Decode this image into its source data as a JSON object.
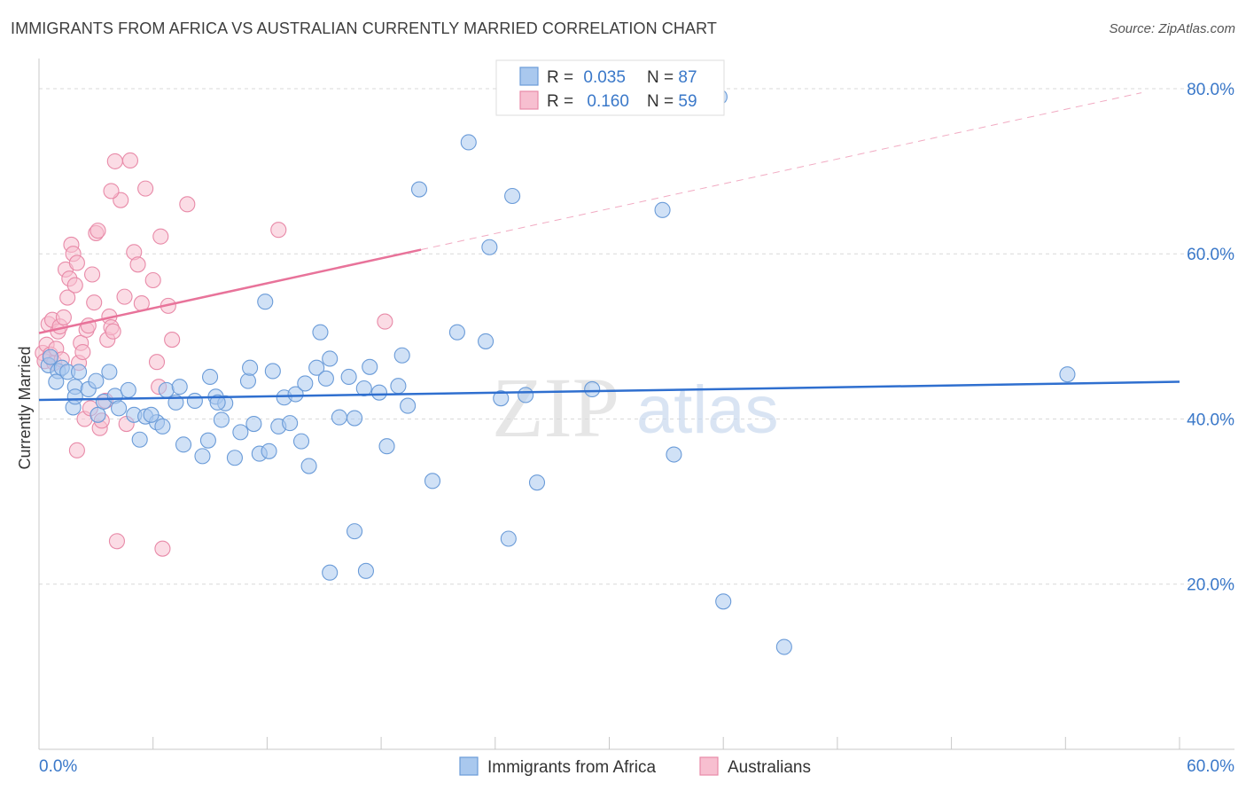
{
  "title": "IMMIGRANTS FROM AFRICA VS AUSTRALIAN CURRENTLY MARRIED CORRELATION CHART",
  "source": "Source: ZipAtlas.com",
  "watermark": {
    "zip": "ZIP",
    "atlas": "atlas"
  },
  "colors": {
    "blue_fill": "#a9c8ee",
    "blue_stroke": "#6a9bd8",
    "blue_line": "#2f6fcf",
    "pink_fill": "#f7bfd0",
    "pink_stroke": "#e88aa8",
    "pink_line": "#e8739a",
    "axis_text": "#3a78c9",
    "grid": "#d8d8d8"
  },
  "legend": {
    "items": [
      {
        "r_label": "R = ",
        "r_value": "0.035",
        "n_label": "N = ",
        "n_value": "87",
        "color": "blue"
      },
      {
        "r_label": "R = ",
        "r_value": "0.160",
        "n_label": "N = ",
        "n_value": "59",
        "color": "pink"
      }
    ]
  },
  "bottom_legend": [
    "Immigrants from Africa",
    "Australians"
  ],
  "chart_data": {
    "type": "scatter",
    "title": "IMMIGRANTS FROM AFRICA VS AUSTRALIAN CURRENTLY MARRIED CORRELATION CHART",
    "xlabel": "",
    "ylabel": "Currently Married",
    "xlim": [
      0,
      60
    ],
    "ylim": [
      0,
      83
    ],
    "x_tick_labels": [
      "0.0%",
      "60.0%"
    ],
    "y_ticks": [
      20,
      40,
      60,
      80
    ],
    "y_tick_labels": [
      "20.0%",
      "40.0%",
      "60.0%",
      "80.0%"
    ],
    "grid": true,
    "legend_position": "top-center",
    "series": [
      {
        "name": "Immigrants from Africa",
        "color": "blue",
        "trend": {
          "x": [
            0,
            60
          ],
          "y": [
            42.3,
            44.5
          ]
        },
        "points": [
          [
            0.5,
            46.5
          ],
          [
            0.6,
            47.5
          ],
          [
            1.0,
            45.8
          ],
          [
            1.2,
            46.2
          ],
          [
            0.9,
            44.5
          ],
          [
            1.5,
            45.7
          ],
          [
            1.9,
            43.9
          ],
          [
            2.1,
            45.7
          ],
          [
            1.8,
            41.4
          ],
          [
            1.9,
            42.7
          ],
          [
            2.6,
            43.6
          ],
          [
            3.0,
            44.6
          ],
          [
            3.1,
            40.5
          ],
          [
            3.4,
            42.1
          ],
          [
            3.7,
            45.7
          ],
          [
            4.0,
            42.8
          ],
          [
            4.7,
            43.5
          ],
          [
            5.0,
            40.5
          ],
          [
            5.6,
            40.3
          ],
          [
            5.3,
            37.5
          ],
          [
            6.2,
            39.6
          ],
          [
            6.7,
            43.5
          ],
          [
            6.5,
            39.1
          ],
          [
            7.2,
            42.0
          ],
          [
            7.4,
            43.9
          ],
          [
            7.6,
            36.9
          ],
          [
            8.2,
            42.2
          ],
          [
            8.6,
            35.5
          ],
          [
            8.9,
            37.4
          ],
          [
            9.0,
            45.1
          ],
          [
            9.3,
            42.7
          ],
          [
            9.6,
            39.9
          ],
          [
            9.8,
            41.9
          ],
          [
            10.3,
            35.3
          ],
          [
            10.6,
            38.4
          ],
          [
            11.0,
            44.6
          ],
          [
            11.1,
            46.2
          ],
          [
            11.3,
            39.4
          ],
          [
            11.6,
            35.8
          ],
          [
            11.9,
            54.2
          ],
          [
            12.1,
            36.1
          ],
          [
            12.3,
            45.8
          ],
          [
            12.6,
            39.1
          ],
          [
            12.9,
            42.6
          ],
          [
            13.2,
            39.5
          ],
          [
            13.5,
            43.0
          ],
          [
            13.8,
            37.3
          ],
          [
            14.0,
            44.3
          ],
          [
            14.2,
            34.3
          ],
          [
            14.6,
            46.2
          ],
          [
            14.8,
            50.5
          ],
          [
            15.1,
            44.9
          ],
          [
            15.3,
            47.3
          ],
          [
            15.8,
            40.2
          ],
          [
            16.3,
            45.1
          ],
          [
            16.6,
            40.1
          ],
          [
            17.1,
            43.7
          ],
          [
            17.4,
            46.3
          ],
          [
            17.9,
            43.2
          ],
          [
            18.3,
            36.7
          ],
          [
            18.9,
            44.0
          ],
          [
            19.1,
            47.7
          ],
          [
            19.4,
            41.6
          ],
          [
            20.0,
            67.8
          ],
          [
            20.7,
            32.5
          ],
          [
            22.0,
            50.5
          ],
          [
            22.6,
            73.5
          ],
          [
            23.5,
            49.4
          ],
          [
            23.7,
            60.8
          ],
          [
            24.3,
            42.5
          ],
          [
            24.7,
            25.5
          ],
          [
            24.9,
            67.0
          ],
          [
            25.6,
            42.9
          ],
          [
            26.2,
            32.3
          ],
          [
            29.1,
            43.6
          ],
          [
            32.8,
            65.3
          ],
          [
            33.4,
            35.7
          ],
          [
            35.8,
            79.0
          ],
          [
            36.0,
            17.9
          ],
          [
            39.2,
            12.4
          ],
          [
            54.1,
            45.4
          ],
          [
            15.3,
            21.4
          ],
          [
            16.6,
            26.4
          ],
          [
            17.2,
            21.6
          ],
          [
            9.4,
            42.0
          ],
          [
            5.9,
            40.5
          ],
          [
            4.2,
            41.3
          ]
        ]
      },
      {
        "name": "Australians",
        "color": "pink",
        "trend": {
          "x": [
            0,
            20.1
          ],
          "y": [
            50.4,
            60.5
          ],
          "dashed_x": [
            20.1,
            58.0
          ],
          "dashed_y": [
            60.5,
            79.5
          ]
        },
        "points": [
          [
            0.2,
            48.0
          ],
          [
            0.3,
            47.0
          ],
          [
            0.4,
            49.0
          ],
          [
            0.5,
            51.5
          ],
          [
            0.6,
            47.8
          ],
          [
            0.7,
            52.0
          ],
          [
            0.8,
            46.8
          ],
          [
            0.9,
            48.5
          ],
          [
            1.0,
            50.6
          ],
          [
            1.1,
            51.2
          ],
          [
            1.2,
            47.2
          ],
          [
            1.3,
            52.3
          ],
          [
            1.4,
            58.1
          ],
          [
            1.5,
            54.7
          ],
          [
            1.6,
            57.0
          ],
          [
            1.7,
            61.1
          ],
          [
            1.8,
            60.0
          ],
          [
            1.9,
            56.2
          ],
          [
            2.0,
            58.9
          ],
          [
            2.1,
            46.8
          ],
          [
            2.2,
            49.2
          ],
          [
            2.3,
            48.1
          ],
          [
            2.4,
            40.0
          ],
          [
            2.5,
            50.8
          ],
          [
            2.6,
            51.3
          ],
          [
            2.7,
            41.3
          ],
          [
            2.8,
            57.5
          ],
          [
            2.9,
            54.1
          ],
          [
            3.0,
            62.5
          ],
          [
            3.1,
            62.8
          ],
          [
            3.2,
            38.9
          ],
          [
            3.3,
            39.8
          ],
          [
            3.5,
            42.2
          ],
          [
            3.6,
            49.6
          ],
          [
            3.7,
            52.4
          ],
          [
            3.8,
            51.1
          ],
          [
            3.9,
            50.6
          ],
          [
            4.0,
            71.2
          ],
          [
            4.1,
            25.2
          ],
          [
            4.3,
            66.5
          ],
          [
            4.5,
            54.8
          ],
          [
            4.6,
            39.4
          ],
          [
            4.8,
            71.3
          ],
          [
            5.0,
            60.2
          ],
          [
            5.2,
            58.7
          ],
          [
            5.4,
            54.0
          ],
          [
            5.6,
            67.9
          ],
          [
            6.0,
            56.8
          ],
          [
            6.2,
            46.9
          ],
          [
            6.4,
            62.1
          ],
          [
            6.5,
            24.3
          ],
          [
            6.8,
            53.7
          ],
          [
            7.0,
            49.6
          ],
          [
            7.8,
            66.0
          ],
          [
            12.6,
            62.9
          ],
          [
            18.2,
            51.8
          ],
          [
            3.8,
            67.6
          ],
          [
            2.0,
            36.2
          ],
          [
            6.3,
            43.9
          ]
        ]
      }
    ]
  }
}
